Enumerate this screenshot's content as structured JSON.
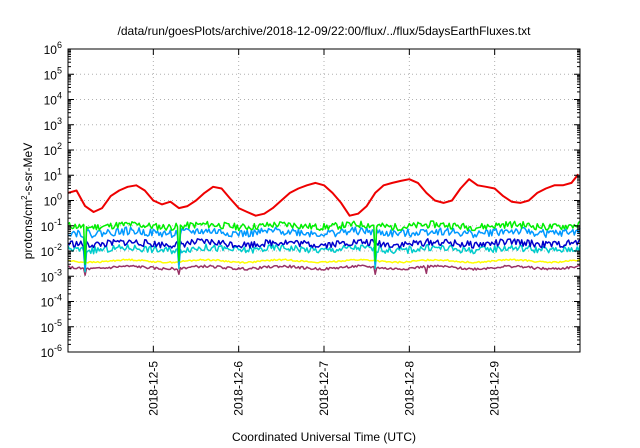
{
  "chart_data": {
    "type": "line",
    "title": "/data/run/goesPlots/archive/2018-12-09/22:00/flux/../flux/5daysEarthFluxes.txt",
    "xlabel": "Coordinated Universal Time (UTC)",
    "ylabel": {
      "pre": "protons/cm",
      "sup": "2",
      "post": "-s-sr-MeV"
    },
    "yscale": "log",
    "ylim_exp": [
      -6,
      6
    ],
    "y_tick_base": "10",
    "y_tick_exponents": [
      "-6",
      "-5",
      "-4",
      "-3",
      "-2",
      "-1",
      "0",
      "1",
      "2",
      "3",
      "4",
      "5",
      "6"
    ],
    "xlim_days": [
      4.0,
      10.0
    ],
    "x_ticks": [
      {
        "label": "2018-12-5",
        "day": 5
      },
      {
        "label": "2018-12-6",
        "day": 6
      },
      {
        "label": "2018-12-7",
        "day": 7
      },
      {
        "label": "2018-12-8",
        "day": 8
      },
      {
        "label": "2018-12-9",
        "day": 9
      }
    ],
    "grid": true,
    "series": [
      {
        "color": "#ee0000",
        "points": [
          [
            4.0,
            2.0
          ],
          [
            4.1,
            2.5
          ],
          [
            4.2,
            0.6
          ],
          [
            4.3,
            0.35
          ],
          [
            4.4,
            0.5
          ],
          [
            4.5,
            1.5
          ],
          [
            4.6,
            2.5
          ],
          [
            4.7,
            3.5
          ],
          [
            4.8,
            4.0
          ],
          [
            4.9,
            2.5
          ],
          [
            5.0,
            1.0
          ],
          [
            5.1,
            0.7
          ],
          [
            5.2,
            0.9
          ],
          [
            5.3,
            0.5
          ],
          [
            5.4,
            0.6
          ],
          [
            5.5,
            1.0
          ],
          [
            5.6,
            2.0
          ],
          [
            5.7,
            3.5
          ],
          [
            5.8,
            3.0
          ],
          [
            5.9,
            1.2
          ],
          [
            6.0,
            0.5
          ],
          [
            6.1,
            0.35
          ],
          [
            6.2,
            0.25
          ],
          [
            6.3,
            0.3
          ],
          [
            6.4,
            0.5
          ],
          [
            6.5,
            1.0
          ],
          [
            6.6,
            2.0
          ],
          [
            6.7,
            3.0
          ],
          [
            6.8,
            4.0
          ],
          [
            6.9,
            5.0
          ],
          [
            7.0,
            4.0
          ],
          [
            7.1,
            2.0
          ],
          [
            7.2,
            0.8
          ],
          [
            7.3,
            0.25
          ],
          [
            7.4,
            0.3
          ],
          [
            7.5,
            0.6
          ],
          [
            7.6,
            2.0
          ],
          [
            7.7,
            4.0
          ],
          [
            7.8,
            5.0
          ],
          [
            7.9,
            6.0
          ],
          [
            8.0,
            7.0
          ],
          [
            8.1,
            5.0
          ],
          [
            8.2,
            2.0
          ],
          [
            8.3,
            1.0
          ],
          [
            8.4,
            0.8
          ],
          [
            8.5,
            1.0
          ],
          [
            8.6,
            3.0
          ],
          [
            8.7,
            7.0
          ],
          [
            8.8,
            4.0
          ],
          [
            8.9,
            3.5
          ],
          [
            9.0,
            3.0
          ],
          [
            9.1,
            1.5
          ],
          [
            9.2,
            0.9
          ],
          [
            9.3,
            0.8
          ],
          [
            9.4,
            1.0
          ],
          [
            9.5,
            2.0
          ],
          [
            9.6,
            3.0
          ],
          [
            9.7,
            4.0
          ],
          [
            9.8,
            4.0
          ],
          [
            9.9,
            5.0
          ],
          [
            9.98,
            11.0
          ]
        ]
      },
      {
        "color": "#00ee00",
        "baseline": 0.1,
        "amp": 0.14,
        "seed": 11,
        "dips": [
          [
            4.2,
            0.003
          ],
          [
            5.3,
            0.004
          ],
          [
            7.6,
            0.004
          ]
        ]
      },
      {
        "color": "#0099ff",
        "baseline": 0.055,
        "amp": 0.16,
        "seed": 22,
        "dips": [
          [
            4.2,
            0.002
          ],
          [
            5.3,
            0.003
          ],
          [
            7.6,
            0.003
          ]
        ]
      },
      {
        "color": "#0000cc",
        "baseline": 0.02,
        "amp": 0.14,
        "seed": 33,
        "dips": [
          [
            4.2,
            0.0025
          ],
          [
            5.3,
            0.004
          ]
        ]
      },
      {
        "color": "#00cccc",
        "baseline": 0.012,
        "amp": 0.14,
        "seed": 44,
        "dips": [
          [
            4.2,
            0.0015
          ],
          [
            5.3,
            0.002
          ],
          [
            7.6,
            0.002
          ]
        ]
      },
      {
        "color": "#ffff00",
        "baseline": 0.004,
        "amp": 0.03,
        "seed": 55,
        "dips": []
      },
      {
        "color": "#993366",
        "baseline": 0.0022,
        "amp": 0.05,
        "seed": 66,
        "dips": [
          [
            4.2,
            0.0011
          ],
          [
            5.3,
            0.0012
          ],
          [
            7.6,
            0.0012
          ],
          [
            8.2,
            0.0013
          ]
        ]
      }
    ]
  }
}
